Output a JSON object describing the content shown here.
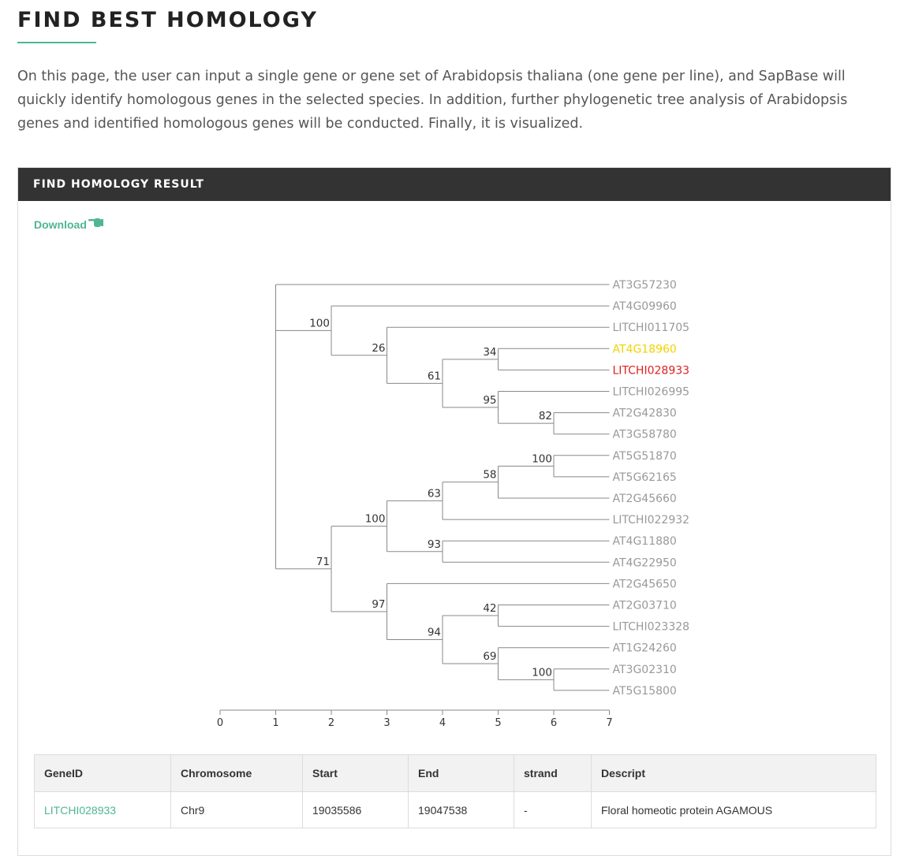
{
  "page": {
    "title": "FIND BEST HOMOLOGY",
    "intro": "On this page, the user can input a single gene or gene set of Arabidopsis thaliana (one gene per line), and SapBase will quickly identify homologous genes in the selected species. In addition, further phylogenetic tree analysis of Arabidopsis genes and identified homologous genes will be conducted. Finally, it is visualized."
  },
  "panel": {
    "header": "FIND HOMOLOGY RESULT",
    "download_label": "Download",
    "download_icon": "pointing-hand-icon"
  },
  "tree": {
    "leaves": [
      {
        "id": "AT3G57230",
        "color": "#999999"
      },
      {
        "id": "AT4G09960",
        "color": "#999999"
      },
      {
        "id": "LITCHI011705",
        "color": "#999999"
      },
      {
        "id": "AT4G18960",
        "color": "#f2d200"
      },
      {
        "id": "LITCHI028933",
        "color": "#e02020"
      },
      {
        "id": "LITCHI026995",
        "color": "#999999"
      },
      {
        "id": "AT2G42830",
        "color": "#999999"
      },
      {
        "id": "AT3G58780",
        "color": "#999999"
      },
      {
        "id": "AT5G51870",
        "color": "#999999"
      },
      {
        "id": "AT5G62165",
        "color": "#999999"
      },
      {
        "id": "AT2G45660",
        "color": "#999999"
      },
      {
        "id": "LITCHI022932",
        "color": "#999999"
      },
      {
        "id": "AT4G11880",
        "color": "#999999"
      },
      {
        "id": "AT4G22950",
        "color": "#999999"
      },
      {
        "id": "AT2G45650",
        "color": "#999999"
      },
      {
        "id": "AT2G03710",
        "color": "#999999"
      },
      {
        "id": "LITCHI023328",
        "color": "#999999"
      },
      {
        "id": "AT1G24260",
        "color": "#999999"
      },
      {
        "id": "AT3G02310",
        "color": "#999999"
      },
      {
        "id": "AT5G15800",
        "color": "#999999"
      }
    ],
    "nodes": [
      {
        "name": "root",
        "depth": 1,
        "support": "",
        "children": [
          "AT3G57230",
          "n100a",
          "n71"
        ]
      },
      {
        "name": "n100a",
        "depth": 2,
        "support": "100",
        "children": [
          "AT4G09960",
          "n26"
        ]
      },
      {
        "name": "n26",
        "depth": 3,
        "support": "26",
        "children": [
          "LITCHI011705",
          "n61"
        ]
      },
      {
        "name": "n61",
        "depth": 4,
        "support": "61",
        "children": [
          "n34",
          "n95"
        ]
      },
      {
        "name": "n34",
        "depth": 5,
        "support": "34",
        "children": [
          "AT4G18960",
          "LITCHI028933"
        ]
      },
      {
        "name": "n95",
        "depth": 5,
        "support": "95",
        "children": [
          "LITCHI026995",
          "n82"
        ]
      },
      {
        "name": "n82",
        "depth": 6,
        "support": "82",
        "children": [
          "AT2G42830",
          "AT3G58780"
        ]
      },
      {
        "name": "n71",
        "depth": 2,
        "support": "71",
        "children": [
          "n100b",
          "n97"
        ]
      },
      {
        "name": "n100b",
        "depth": 3,
        "support": "100",
        "children": [
          "n63",
          "n93"
        ]
      },
      {
        "name": "n63",
        "depth": 4,
        "support": "63",
        "children": [
          "n58",
          "LITCHI022932"
        ]
      },
      {
        "name": "n58",
        "depth": 5,
        "support": "58",
        "children": [
          "n100c",
          "AT2G45660"
        ]
      },
      {
        "name": "n100c",
        "depth": 6,
        "support": "100",
        "children": [
          "AT5G51870",
          "AT5G62165"
        ]
      },
      {
        "name": "n93",
        "depth": 4,
        "support": "93",
        "children": [
          "AT4G11880",
          "AT4G22950"
        ]
      },
      {
        "name": "n97",
        "depth": 3,
        "support": "97",
        "children": [
          "AT2G45650",
          "n94"
        ]
      },
      {
        "name": "n94",
        "depth": 4,
        "support": "94",
        "children": [
          "n42",
          "n69"
        ]
      },
      {
        "name": "n42",
        "depth": 5,
        "support": "42",
        "children": [
          "AT2G03710",
          "LITCHI023328"
        ]
      },
      {
        "name": "n69",
        "depth": 5,
        "support": "69",
        "children": [
          "AT1G24260",
          "n100d"
        ]
      },
      {
        "name": "n100d",
        "depth": 6,
        "support": "100",
        "children": [
          "AT3G02310",
          "AT5G15800"
        ]
      }
    ],
    "leaf_depth": 7,
    "axis_ticks": [
      "0",
      "1",
      "2",
      "3",
      "4",
      "5",
      "6",
      "7"
    ]
  },
  "table": {
    "headers": [
      "GeneID",
      "Chromosome",
      "Start",
      "End",
      "strand",
      "Descript"
    ],
    "rows": [
      [
        "LITCHI028933",
        "Chr9",
        "19035586",
        "19047538",
        "-",
        "Floral homeotic protein AGAMOUS"
      ]
    ]
  }
}
